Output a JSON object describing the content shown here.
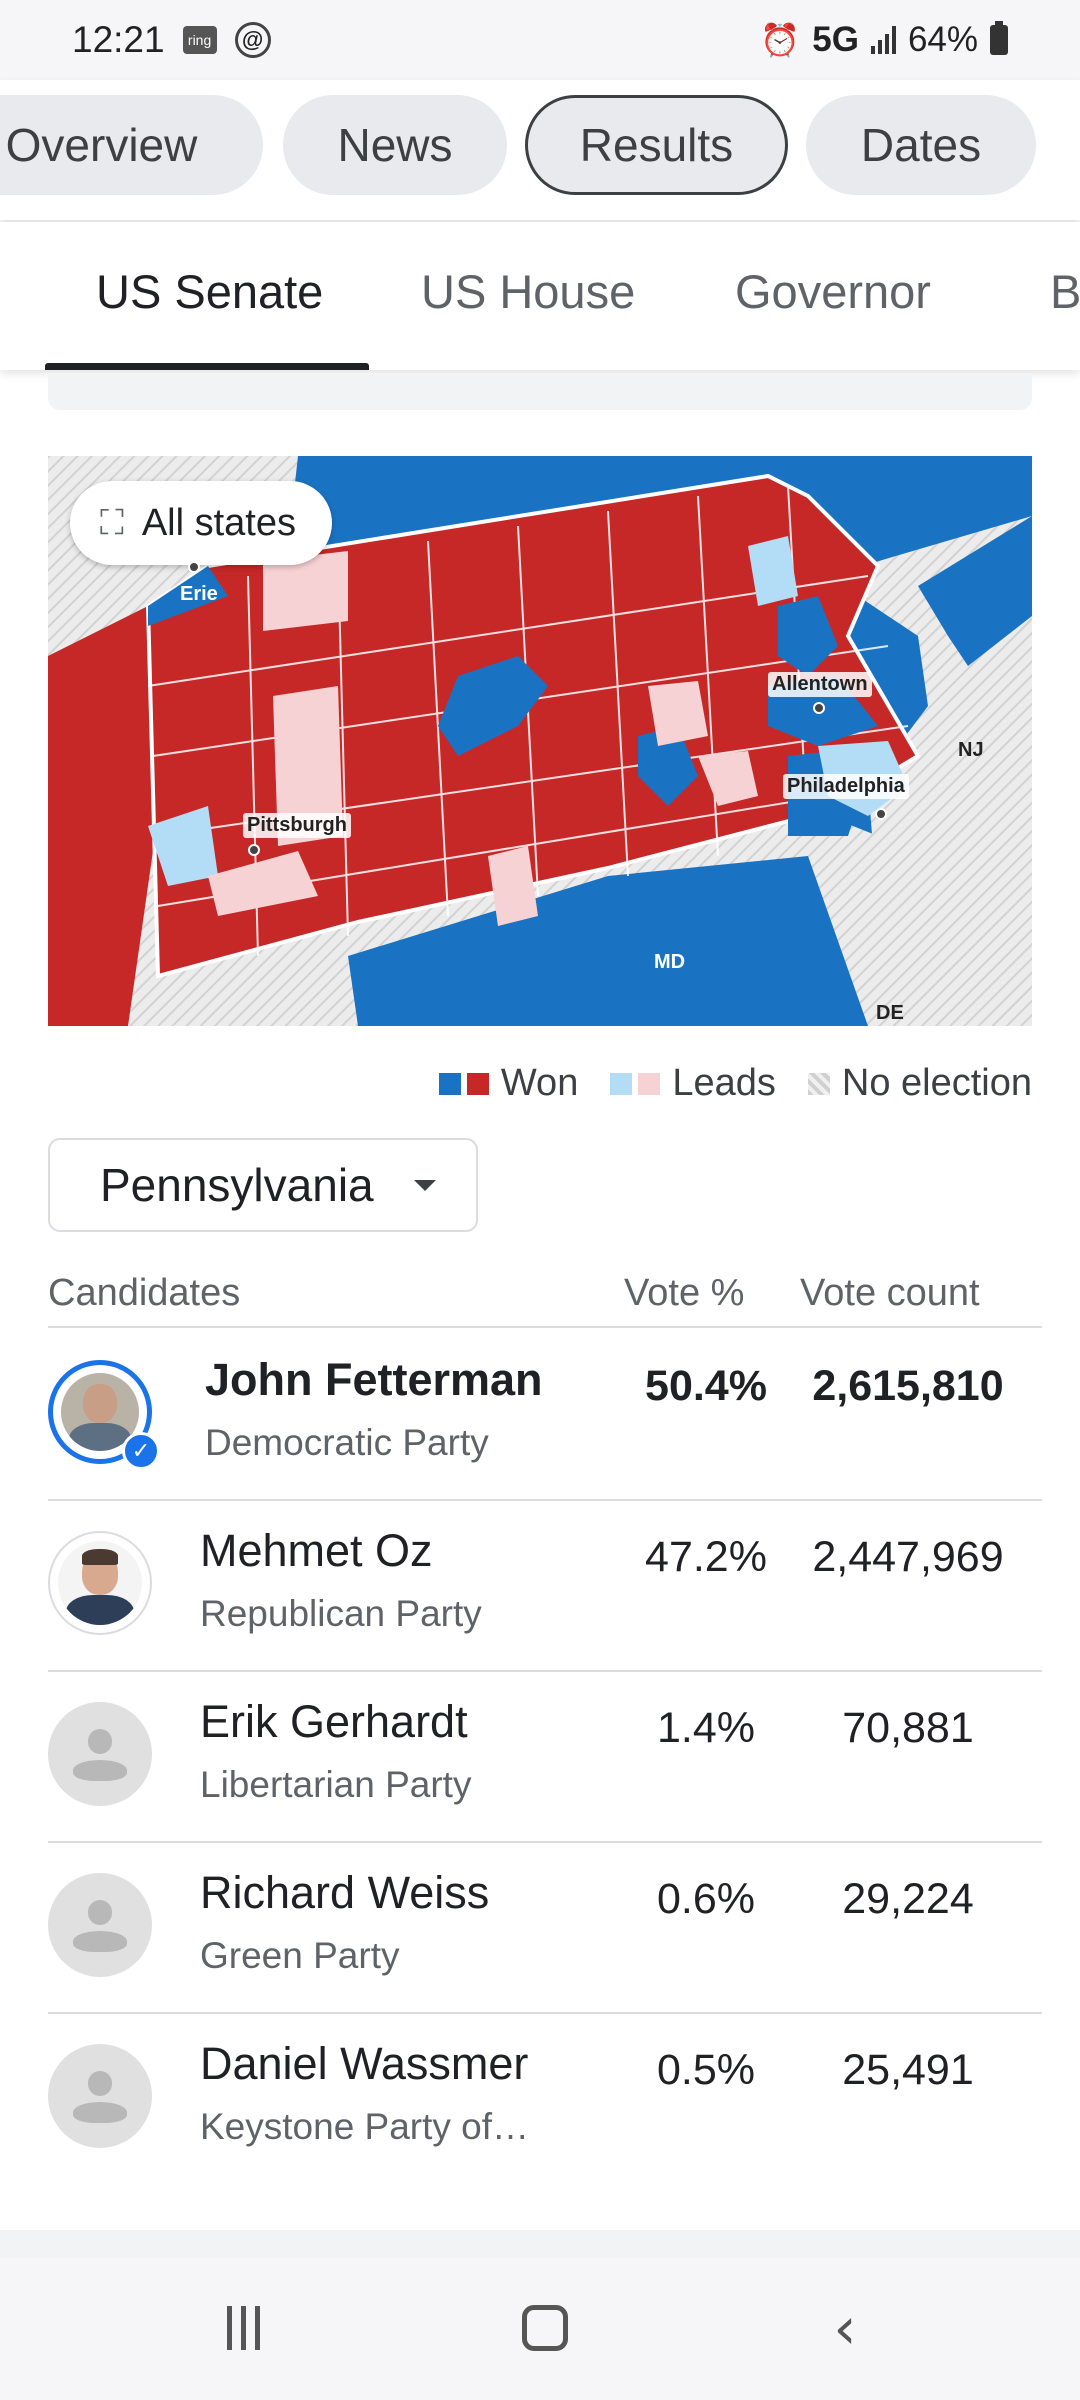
{
  "status_bar": {
    "time": "12:21",
    "ring_label": "ring",
    "threads_glyph": "@",
    "network": "5G",
    "battery": "64%"
  },
  "pill_tabs": [
    "Overview",
    "News",
    "Results",
    "Dates"
  ],
  "active_pill": "Results",
  "sub_tabs": [
    "US Senate",
    "US House",
    "Governor",
    "B"
  ],
  "active_sub_tab": "US Senate",
  "map": {
    "button_label": "All states",
    "labels": {
      "erie": "Erie",
      "allentown": "Allentown",
      "pittsburgh": "Pittsburgh",
      "philadelphia": "Philadelphia",
      "nj": "NJ",
      "md": "MD",
      "de": "DE"
    },
    "colors": {
      "dem_won": "#1a73c2",
      "rep_won": "#c62828",
      "dem_leads": "#b3dcf7",
      "rep_leads": "#f7d2d4",
      "no_election": "#e3e3e3"
    }
  },
  "legend": {
    "won": "Won",
    "leads": "Leads",
    "no_election": "No election"
  },
  "state_select": {
    "value": "Pennsylvania"
  },
  "table": {
    "headers": {
      "candidates": "Candidates",
      "vote_pct": "Vote %",
      "vote_count": "Vote count"
    },
    "rows": [
      {
        "name": "John Fetterman",
        "party": "Democratic Party",
        "pct": "50.4%",
        "count": "2,615,810",
        "winner": true
      },
      {
        "name": "Mehmet Oz",
        "party": "Republican Party",
        "pct": "47.2%",
        "count": "2,447,969",
        "winner": false
      },
      {
        "name": "Erik Gerhardt",
        "party": "Libertarian Party",
        "pct": "1.4%",
        "count": "70,881",
        "winner": false
      },
      {
        "name": "Richard Weiss",
        "party": "Green Party",
        "pct": "0.6%",
        "count": "29,224",
        "winner": false
      },
      {
        "name": "Daniel Wassmer",
        "party": "Keystone Party of…",
        "pct": "0.5%",
        "count": "25,491",
        "winner": false
      }
    ]
  }
}
